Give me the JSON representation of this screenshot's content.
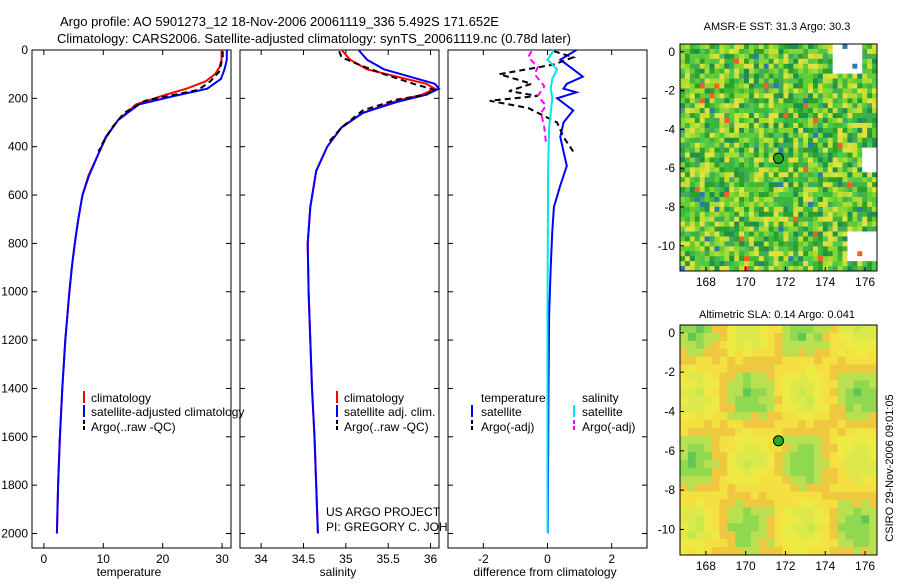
{
  "header": {
    "line1": "Argo profile: AO 5901273_12 18-Nov-2006 20061119_336 5.492S 171.652E",
    "line2": "Climatology: CARS2006. Satellite-adjusted climatology: synTS_20061119.nc (0.78d later)"
  },
  "colors": {
    "climatology": "#ff0000",
    "satellite": "#0000ff",
    "argo": "#000000",
    "cyan": "#00e5ee",
    "magenta": "#ff00ff"
  },
  "chart_data": [
    {
      "type": "line",
      "id": "temperature",
      "xlabel": "temperature",
      "ylabel": "",
      "xlim": [
        -2,
        31.5
      ],
      "ylim": [
        2060,
        0
      ],
      "xticks": [
        0,
        10,
        20,
        30
      ],
      "xtick_labels": [
        "0",
        "10",
        "20",
        "30"
      ],
      "yticks": [
        0,
        200,
        400,
        600,
        800,
        1000,
        1200,
        1400,
        1600,
        1800,
        2000
      ],
      "ytick_labels": [
        "0",
        "200",
        "400",
        "600",
        "800",
        "1000",
        "1200",
        "1400",
        "1600",
        "1800",
        "2000"
      ],
      "legend": [
        "climatology",
        "satellite-adjusted climatology",
        "Argo(..raw -QC)"
      ],
      "series": [
        {
          "name": "climatology",
          "style": "solid",
          "color": "#ff0000",
          "points": [
            [
              29.9,
              0
            ],
            [
              29.9,
              40
            ],
            [
              29.6,
              70
            ],
            [
              28.8,
              100
            ],
            [
              27.2,
              130
            ],
            [
              24,
              160
            ],
            [
              20.5,
              185
            ],
            [
              15.5,
              225
            ],
            [
              12.5,
              290
            ],
            [
              10.5,
              360
            ],
            [
              9,
              440
            ],
            [
              7.5,
              520
            ],
            [
              6.5,
              600
            ],
            [
              5.8,
              700
            ],
            [
              5.2,
              800
            ],
            [
              4.7,
              900
            ],
            [
              4.3,
              1000
            ],
            [
              3.6,
              1200
            ],
            [
              3.1,
              1400
            ],
            [
              2.7,
              1600
            ],
            [
              2.4,
              1800
            ],
            [
              2.2,
              2000
            ]
          ]
        },
        {
          "name": "satellite",
          "style": "solid",
          "color": "#0000ff",
          "points": [
            [
              30.8,
              0
            ],
            [
              30.8,
              40
            ],
            [
              30.4,
              80
            ],
            [
              29.8,
              120
            ],
            [
              27.5,
              160
            ],
            [
              22,
              190
            ],
            [
              16,
              225
            ],
            [
              12.5,
              290
            ],
            [
              10.4,
              360
            ],
            [
              9,
              440
            ],
            [
              7.6,
              520
            ],
            [
              6.5,
              600
            ],
            [
              5.8,
              700
            ],
            [
              5.2,
              800
            ],
            [
              4.7,
              900
            ],
            [
              4.3,
              1000
            ],
            [
              3.6,
              1200
            ],
            [
              3.1,
              1400
            ],
            [
              2.7,
              1600
            ],
            [
              2.4,
              1800
            ],
            [
              2.2,
              2000
            ]
          ]
        },
        {
          "name": "argo",
          "style": "dash",
          "color": "#000000",
          "points": [
            [
              30.1,
              5
            ],
            [
              30.1,
              30
            ],
            [
              29.8,
              60
            ],
            [
              29.5,
              90
            ],
            [
              28,
              130
            ],
            [
              26,
              165
            ],
            [
              21,
              190
            ],
            [
              17,
              210
            ],
            [
              13.5,
              260
            ],
            [
              11.5,
              320
            ],
            [
              10,
              380
            ],
            [
              9.2,
              420
            ]
          ]
        }
      ]
    },
    {
      "type": "line",
      "id": "salinity",
      "xlabel": "salinity",
      "ylabel": "",
      "xlim": [
        33.75,
        36.1
      ],
      "ylim": [
        2060,
        0
      ],
      "xticks": [
        34,
        34.5,
        35,
        35.5,
        36
      ],
      "xtick_labels": [
        "34",
        "34.5",
        "35",
        "35.5",
        "36"
      ],
      "legend": [
        "climatology",
        "satellite adj. clim.",
        "Argo(..raw -QC)"
      ],
      "notes": [
        "US ARGO PROJECT",
        "PI: GREGORY C. JOHNSON"
      ],
      "series": [
        {
          "name": "climatology",
          "style": "solid",
          "color": "#ff0000",
          "points": [
            [
              34.95,
              0
            ],
            [
              35.05,
              40
            ],
            [
              35.25,
              80
            ],
            [
              35.6,
              110
            ],
            [
              35.95,
              140
            ],
            [
              36.05,
              160
            ],
            [
              35.9,
              185
            ],
            [
              35.6,
              210
            ],
            [
              35.2,
              260
            ],
            [
              34.95,
              320
            ],
            [
              34.78,
              400
            ],
            [
              34.65,
              500
            ],
            [
              34.58,
              650
            ],
            [
              34.55,
              800
            ],
            [
              34.56,
              1000
            ],
            [
              34.58,
              1200
            ],
            [
              34.6,
              1400
            ],
            [
              34.63,
              1600
            ],
            [
              34.65,
              1800
            ],
            [
              34.67,
              2000
            ]
          ]
        },
        {
          "name": "satellite",
          "style": "solid",
          "color": "#0000ff",
          "points": [
            [
              35.15,
              0
            ],
            [
              35.25,
              40
            ],
            [
              35.45,
              80
            ],
            [
              35.75,
              110
            ],
            [
              36.05,
              140
            ],
            [
              36.1,
              160
            ],
            [
              35.95,
              185
            ],
            [
              35.6,
              215
            ],
            [
              35.2,
              260
            ],
            [
              34.95,
              320
            ],
            [
              34.78,
              400
            ],
            [
              34.65,
              500
            ],
            [
              34.58,
              650
            ],
            [
              34.55,
              800
            ],
            [
              34.56,
              1000
            ],
            [
              34.58,
              1200
            ],
            [
              34.6,
              1400
            ],
            [
              34.63,
              1600
            ],
            [
              34.65,
              1800
            ],
            [
              34.67,
              2000
            ]
          ]
        },
        {
          "name": "argo",
          "style": "dash",
          "color": "#000000",
          "points": [
            [
              34.92,
              5
            ],
            [
              34.95,
              30
            ],
            [
              35.15,
              60
            ],
            [
              35.45,
              100
            ],
            [
              35.8,
              140
            ],
            [
              36.05,
              165
            ],
            [
              35.95,
              185
            ],
            [
              35.6,
              205
            ],
            [
              35.2,
              250
            ],
            [
              34.95,
              320
            ],
            [
              34.8,
              380
            ]
          ]
        }
      ]
    },
    {
      "type": "line",
      "id": "difference",
      "xlabel": "difference from climatology",
      "ylabel": "",
      "xlim": [
        -3.1,
        3.1
      ],
      "ylim": [
        2060,
        0
      ],
      "xticks": [
        -2,
        0,
        2
      ],
      "xtick_labels": [
        "-2",
        "0",
        "2"
      ],
      "legend_groups": [
        {
          "title": "temperature",
          "items": [
            "satellite",
            "Argo(-adj)"
          ]
        },
        {
          "title": "salinity",
          "items": [
            "satellite",
            "Argo(-adj)"
          ]
        }
      ],
      "series": [
        {
          "name": "temperature satellite",
          "style": "solid",
          "color": "#0000ff",
          "points": [
            [
              0.9,
              0
            ],
            [
              0.4,
              40
            ],
            [
              0.8,
              80
            ],
            [
              1.1,
              110
            ],
            [
              0.6,
              140
            ],
            [
              0.5,
              160
            ],
            [
              0.9,
              175
            ],
            [
              0.3,
              200
            ],
            [
              0.8,
              250
            ],
            [
              0.5,
              300
            ],
            [
              0.4,
              360
            ],
            [
              0.5,
              420
            ],
            [
              0.6,
              480
            ],
            [
              0.4,
              560
            ],
            [
              0.2,
              650
            ],
            [
              0.15,
              750
            ],
            [
              0.1,
              900
            ],
            [
              0.05,
              1100
            ],
            [
              0.03,
              1400
            ],
            [
              0.02,
              1700
            ],
            [
              0.01,
              2000
            ]
          ]
        },
        {
          "name": "temperature argo",
          "style": "dash",
          "color": "#000000",
          "points": [
            [
              0.2,
              5
            ],
            [
              0.8,
              30
            ],
            [
              0.2,
              60
            ],
            [
              -1.5,
              100
            ],
            [
              -0.5,
              140
            ],
            [
              -1.2,
              170
            ],
            [
              -0.3,
              190
            ],
            [
              -1.8,
              210
            ],
            [
              -0.6,
              240
            ],
            [
              0.3,
              300
            ],
            [
              0.5,
              360
            ],
            [
              0.8,
              420
            ]
          ]
        },
        {
          "name": "salinity satellite",
          "style": "solid",
          "color": "#00e5ee",
          "points": [
            [
              0.2,
              0
            ],
            [
              0,
              40
            ],
            [
              0.3,
              80
            ],
            [
              0.15,
              120
            ],
            [
              0.1,
              160
            ],
            [
              0.15,
              200
            ],
            [
              0.1,
              260
            ],
            [
              0.05,
              320
            ],
            [
              0.02,
              500
            ],
            [
              0.01,
              800
            ],
            [
              0,
              1100
            ],
            [
              0,
              1400
            ],
            [
              0,
              1700
            ],
            [
              0,
              2000
            ]
          ]
        },
        {
          "name": "salinity argo",
          "style": "dash",
          "color": "#ff00ff",
          "points": [
            [
              -0.5,
              5
            ],
            [
              -0.6,
              30
            ],
            [
              -0.3,
              70
            ],
            [
              -0.4,
              100
            ],
            [
              -0.1,
              150
            ],
            [
              -0.3,
              190
            ],
            [
              -0.05,
              230
            ],
            [
              -0.2,
              260
            ],
            [
              -0.1,
              320
            ],
            [
              -0.05,
              380
            ]
          ]
        }
      ]
    },
    {
      "type": "heatmap",
      "id": "sst",
      "title": "AMSR-E SST: 31.3 Argo: 30.3",
      "xlim": [
        166.7,
        176.6
      ],
      "ylim": [
        -11.3,
        0.4
      ],
      "xticks": [
        168,
        170,
        172,
        174,
        176
      ],
      "xtick_labels": [
        "168",
        "170",
        "172",
        "174",
        "176"
      ],
      "yticks": [
        0,
        -2,
        -4,
        -6,
        -8,
        -10
      ],
      "ytick_labels": [
        "0",
        "-2",
        "-4",
        "-6",
        "-8",
        "-10"
      ],
      "marker": {
        "lon": 171.652,
        "lat": -5.492
      }
    },
    {
      "type": "heatmap",
      "id": "sla",
      "title": "Altimetric SLA: 0.14 Argo: 0.041",
      "xlim": [
        166.7,
        176.6
      ],
      "ylim": [
        -11.3,
        0.4
      ],
      "xticks": [
        168,
        170,
        172,
        174,
        176
      ],
      "xtick_labels": [
        "168",
        "170",
        "172",
        "174",
        "176"
      ],
      "yticks": [
        0,
        -2,
        -4,
        -6,
        -8,
        -10
      ],
      "ytick_labels": [
        "0",
        "-2",
        "-4",
        "-6",
        "-8",
        "-10"
      ],
      "marker": {
        "lon": 171.652,
        "lat": -5.492
      }
    }
  ],
  "side_label": "CSIRO 29-Nov-2006 09:01:05"
}
